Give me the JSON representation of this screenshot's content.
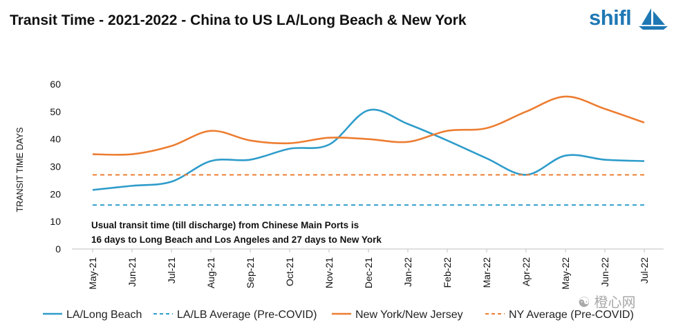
{
  "header": {
    "title": "Transit Time - 2021-2022 - China to US LA/Long Beach & New York",
    "logo_text": "shifl",
    "logo_icon": "sailboat-icon",
    "brand_color": "#1f78b4"
  },
  "watermark": {
    "text": "橙心网",
    "icon": "wechat-icon"
  },
  "chart_data": {
    "type": "line",
    "title": "Transit Time - 2021-2022 - China to US LA/Long Beach & New York",
    "xlabel": "",
    "ylabel": "TRANSIT TIME DAYS",
    "ylim": [
      0,
      60
    ],
    "yticks": [
      0,
      10,
      20,
      30,
      40,
      50,
      60
    ],
    "grid": false,
    "legend_position": "bottom",
    "categories": [
      "May-21",
      "Jun-21",
      "Jul-21",
      "Aug-21",
      "Sep-21",
      "Oct-21",
      "Nov-21",
      "Dec-21",
      "Jan-22",
      "Feb-22",
      "Mar-22",
      "Apr-22",
      "May-22",
      "Jun-22",
      "Jul-22"
    ],
    "series": [
      {
        "name": "LA/Long Beach",
        "style": "solid",
        "color": "#2e9cca",
        "values": [
          21.5,
          23,
          24.5,
          32,
          32.5,
          36.5,
          38,
          50.5,
          45.5,
          39.5,
          33,
          27,
          34,
          32.5,
          32
        ]
      },
      {
        "name": "LA/LB Average (Pre-COVID)",
        "style": "dashed",
        "color": "#2e9cca",
        "values": [
          16,
          16,
          16,
          16,
          16,
          16,
          16,
          16,
          16,
          16,
          16,
          16,
          16,
          16,
          16
        ]
      },
      {
        "name": "New York/New Jersey",
        "style": "solid",
        "color": "#ed7d31",
        "values": [
          34.5,
          34.5,
          37.5,
          43,
          39.5,
          38.5,
          40.5,
          40,
          39,
          43,
          44,
          50,
          55.5,
          51,
          46
        ]
      },
      {
        "name": "NY Average (Pre-COVID)",
        "style": "dashed",
        "color": "#ed7d31",
        "values": [
          27,
          27,
          27,
          27,
          27,
          27,
          27,
          27,
          27,
          27,
          27,
          27,
          27,
          27,
          27
        ]
      }
    ],
    "annotation": [
      "Usual transit time (till discharge) from Chinese Main Ports is",
      "16 days to Long Beach and Los Angeles and 27 days to New York"
    ]
  }
}
